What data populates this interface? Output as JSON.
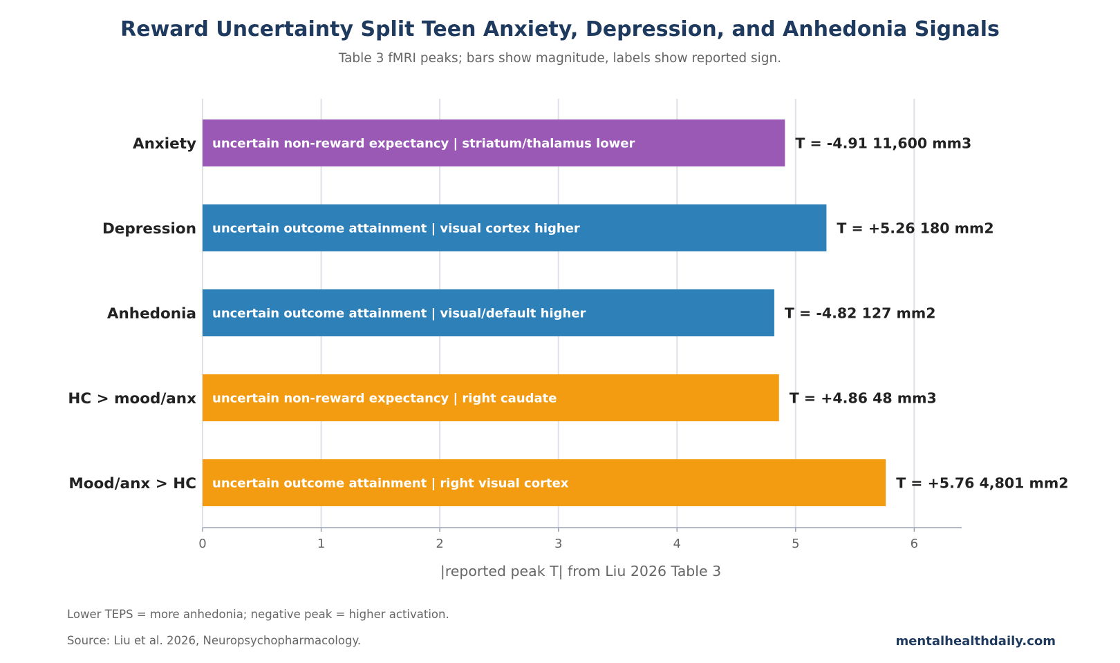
{
  "colors": {
    "title": "#1f3a5f",
    "text_dark": "#222222",
    "text_muted": "#666666",
    "grid": "#dde0e6",
    "axis": "#9aa3b2",
    "bar_label": "#ffffff"
  },
  "chart_data": {
    "type": "bar",
    "orientation": "horizontal",
    "title": "Reward Uncertainty Split Teen Anxiety, Depression, and Anhedonia Signals",
    "subtitle": "Table 3 fMRI peaks; bars show magnitude, labels show reported sign.",
    "xlabel": "|reported peak T| from Liu 2026 Table 3",
    "xlim": [
      0,
      6.4
    ],
    "xticks": [
      0,
      1,
      2,
      3,
      4,
      5,
      6
    ],
    "grid": true,
    "legend": "none",
    "categories": [
      "Anxiety",
      "Depression",
      "Anhedonia",
      "HC > mood/anx",
      "Mood/anx > HC"
    ],
    "values": [
      4.91,
      5.26,
      4.82,
      4.86,
      5.76
    ],
    "bar_labels": [
      "uncertain non-reward expectancy | striatum/thalamus lower",
      "uncertain outcome attainment | visual cortex higher",
      "uncertain outcome attainment | visual/default higher",
      "uncertain non-reward expectancy | right caudate",
      "uncertain outcome attainment | right visual cortex"
    ],
    "value_labels": [
      "T = -4.91   11,600 mm3",
      "T = +5.26   180 mm2",
      "T = -4.82   127 mm2",
      "T = +4.86   48 mm3",
      "T = +5.76   4,801 mm2"
    ],
    "bar_colors": [
      "#9b59b6",
      "#2e80b9",
      "#2e80b9",
      "#f39c12",
      "#f39c12"
    ]
  },
  "footer": {
    "note": "Lower TEPS = more anhedonia; negative peak = higher activation.",
    "source": "Source: Liu et al. 2026, Neuropsychopharmacology.",
    "brand": "mentalhealthdaily.com"
  }
}
